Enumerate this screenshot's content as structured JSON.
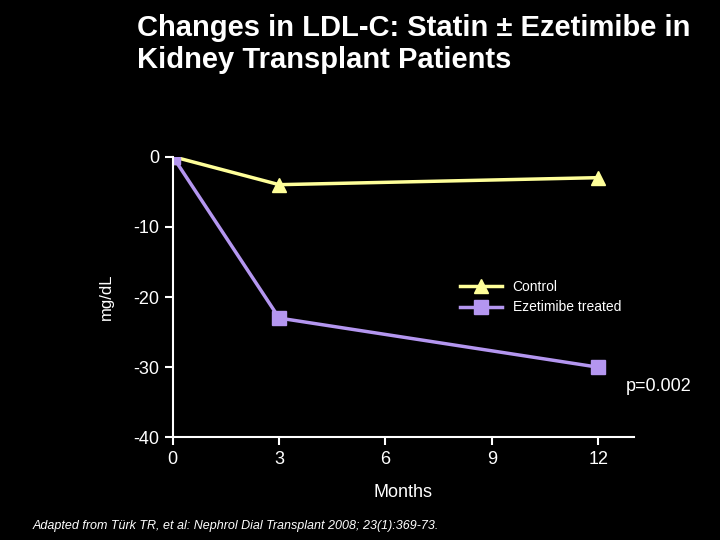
{
  "chart_data": {
    "type": "line",
    "title": "Changes in LDL-C: Statin ± Ezetimibe in Kidney Transplant Patients",
    "x_label": "Months",
    "y_label": "mg/dL",
    "series": [
      {
        "name": "Control",
        "color": "#ffff99",
        "marker": "triangle",
        "line_style": "solid",
        "x": [
          0,
          3,
          12
        ],
        "values": [
          0,
          -4,
          -3
        ]
      },
      {
        "name": "Ezetimibe treated",
        "color": "#b496f0",
        "marker": "square",
        "line_style": "solid",
        "x": [
          0,
          3,
          12
        ],
        "values": [
          0,
          -23,
          -30
        ]
      }
    ],
    "xlim": [
      0,
      13
    ],
    "xticks": [
      0,
      3,
      6,
      9,
      12
    ],
    "ylim": [
      -40,
      0
    ],
    "yticks": [
      0,
      -10,
      -20,
      -30,
      -40
    ],
    "legend": "center right",
    "grid": false,
    "annotation": "p=0.002",
    "source": "Adapted from Türk TR, et al: Nephrol Dial Transplant 2008; 23(1):369-73."
  }
}
